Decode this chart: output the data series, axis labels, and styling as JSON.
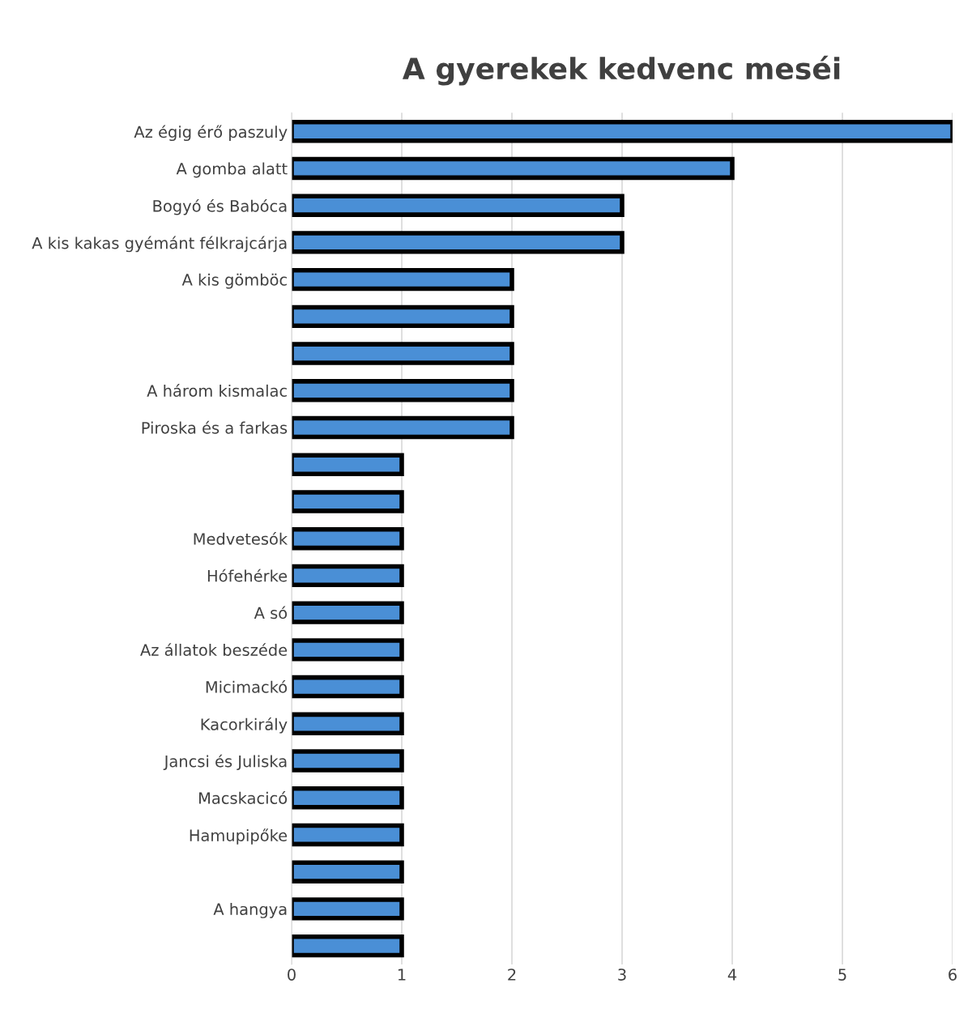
{
  "chart_data": {
    "type": "bar",
    "orientation": "horizontal",
    "title": "A gyerekek kedvenc meséi",
    "categories": [
      "Az égig érő paszuly",
      "A gomba alatt",
      "Bogyó és Babóca",
      "A kis kakas gyémánt félkrajcárja",
      "A kis gömböc",
      null,
      null,
      "A három kismalac",
      "Piroska és a farkas",
      null,
      null,
      "Medvetesók",
      "Hófehérke",
      "A só",
      "Az állatok beszéde",
      "Micimackó",
      "Kacorkirály",
      "Jancsi és Juliska",
      "Macskacicó",
      "Hamupipőke",
      null,
      "A hangya",
      null
    ],
    "series": [
      {
        "color": "#4a8fd6",
        "values": [
          6,
          4,
          3,
          3,
          2,
          2,
          2,
          2,
          2,
          1,
          1,
          1,
          1,
          1,
          1,
          1,
          1,
          1,
          1,
          1,
          1,
          1,
          1
        ]
      }
    ],
    "xlim": [
      0,
      6
    ],
    "xticks": [
      0,
      1,
      2,
      3,
      4,
      5,
      6
    ],
    "grid": "x"
  }
}
